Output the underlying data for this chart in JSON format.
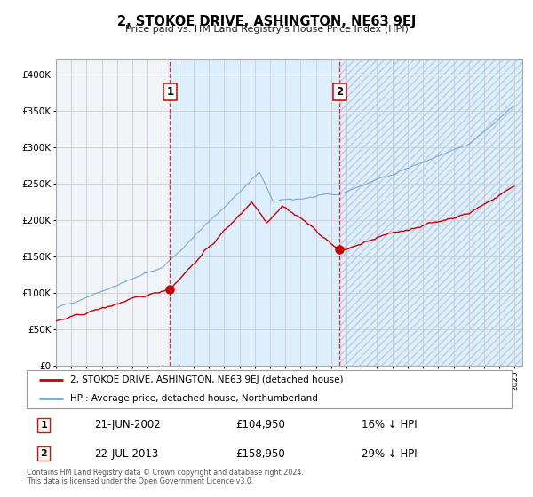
{
  "title": "2, STOKOE DRIVE, ASHINGTON, NE63 9EJ",
  "subtitle": "Price paid vs. HM Land Registry's House Price Index (HPI)",
  "legend_label_red": "2, STOKOE DRIVE, ASHINGTON, NE63 9EJ (detached house)",
  "legend_label_blue": "HPI: Average price, detached house, Northumberland",
  "sale1_date_str": "21-JUN-2002",
  "sale1_year": 2002,
  "sale1_month": 6,
  "sale1_price": 104950,
  "sale1_pct": "16% ↓ HPI",
  "sale2_date_str": "22-JUL-2013",
  "sale2_year": 2013,
  "sale2_month": 7,
  "sale2_price": 158950,
  "sale2_pct": "29% ↓ HPI",
  "footnote_line1": "Contains HM Land Registry data © Crown copyright and database right 2024.",
  "footnote_line2": "This data is licensed under the Open Government Licence v3.0.",
  "red_color": "#cc0000",
  "blue_color": "#7aaad0",
  "shade_color": "#ddeeff",
  "hatch_color": "#bbccdd",
  "grid_color": "#cccccc",
  "bg_color": "#ffffff",
  "plot_bg_color": "#f0f4f8",
  "ylim_max": 420000,
  "xstart": 1995.0,
  "xend": 2025.5,
  "yticks": [
    0,
    50000,
    100000,
    150000,
    200000,
    250000,
    300000,
    350000,
    400000
  ],
  "ylabels": [
    "£0",
    "£50K",
    "£100K",
    "£150K",
    "£200K",
    "£250K",
    "£300K",
    "£350K",
    "£400K"
  ],
  "xtick_years": [
    1995,
    1996,
    1997,
    1998,
    1999,
    2000,
    2001,
    2002,
    2003,
    2004,
    2005,
    2006,
    2007,
    2008,
    2009,
    2010,
    2011,
    2012,
    2013,
    2014,
    2015,
    2016,
    2017,
    2018,
    2019,
    2020,
    2021,
    2022,
    2023,
    2024,
    2025
  ]
}
